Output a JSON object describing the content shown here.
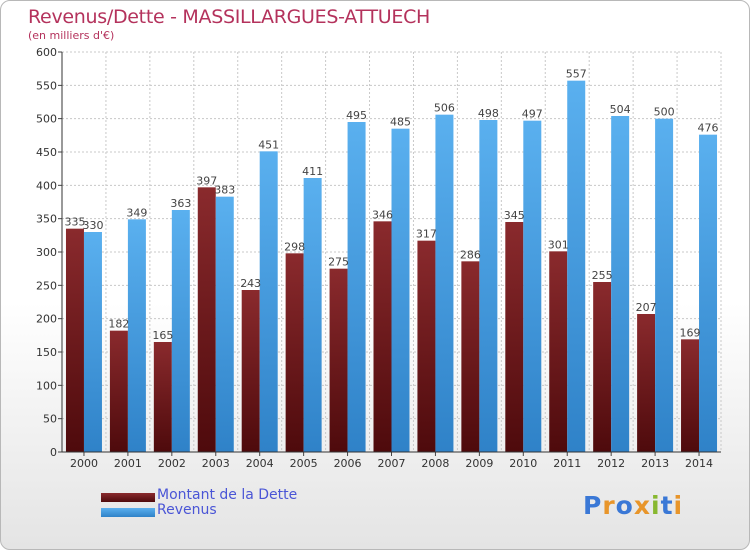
{
  "header": {
    "title": "Revenus/Dette - MASSILLARGUES-ATTUECH",
    "subtitle": "(en milliers d'€)"
  },
  "legend": {
    "items": [
      {
        "label": "Montant de la Dette",
        "color": "#7a1a1d"
      },
      {
        "label": "Revenus",
        "color": "#4aa3e6"
      }
    ]
  },
  "logo": {
    "text": "Proxiti",
    "letters": [
      "P",
      "r",
      "o",
      "x",
      "i",
      "t",
      "i"
    ],
    "colors": [
      "#3a78d6",
      "#e8952a",
      "#3a78d6",
      "#e8952a",
      "#88b830",
      "#3a78d6",
      "#e8952a"
    ]
  },
  "chart_data": {
    "type": "bar",
    "categories": [
      "2000",
      "2001",
      "2002",
      "2003",
      "2004",
      "2005",
      "2006",
      "2007",
      "2008",
      "2009",
      "2010",
      "2011",
      "2012",
      "2013",
      "2014"
    ],
    "series": [
      {
        "name": "Montant de la Dette",
        "values": [
          335,
          182,
          165,
          397,
          243,
          298,
          275,
          346,
          317,
          286,
          345,
          301,
          255,
          207,
          169
        ]
      },
      {
        "name": "Revenus",
        "values": [
          330,
          349,
          363,
          383,
          451,
          411,
          495,
          485,
          506,
          498,
          497,
          557,
          504,
          500,
          476
        ]
      }
    ],
    "title": "Revenus/Dette - MASSILLARGUES-ATTUECH",
    "subtitle": "(en milliers d'€)",
    "ylim": [
      0,
      600
    ],
    "yticks": [
      0,
      50,
      100,
      150,
      200,
      250,
      300,
      350,
      400,
      450,
      500,
      550,
      600
    ],
    "grid": true,
    "legend_position": "bottom-left"
  }
}
